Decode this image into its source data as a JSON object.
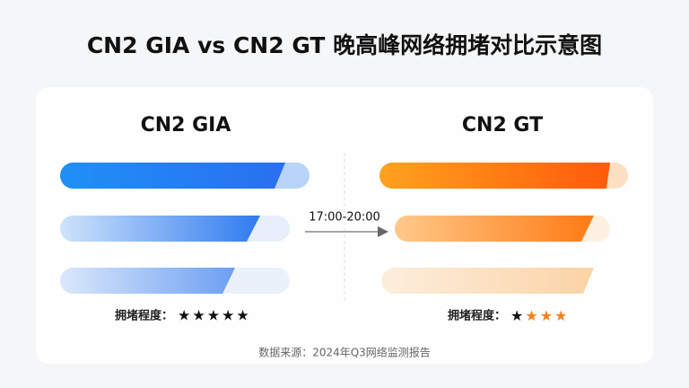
{
  "title": "CN2 GIA vs CN2 GT 晚高峰网络拥堵对比示意图",
  "left": {
    "heading": "CN2 GIA",
    "rating_label": "拥堵程度：",
    "stars": "★★★★★"
  },
  "right": {
    "heading": "CN2 GT",
    "rating_label": "拥堵程度：",
    "stars_dark": "★",
    "stars_orange": "★★★"
  },
  "time_range": "17:00-20:00",
  "source": "数据来源：2024年Q3网络监测报告"
}
